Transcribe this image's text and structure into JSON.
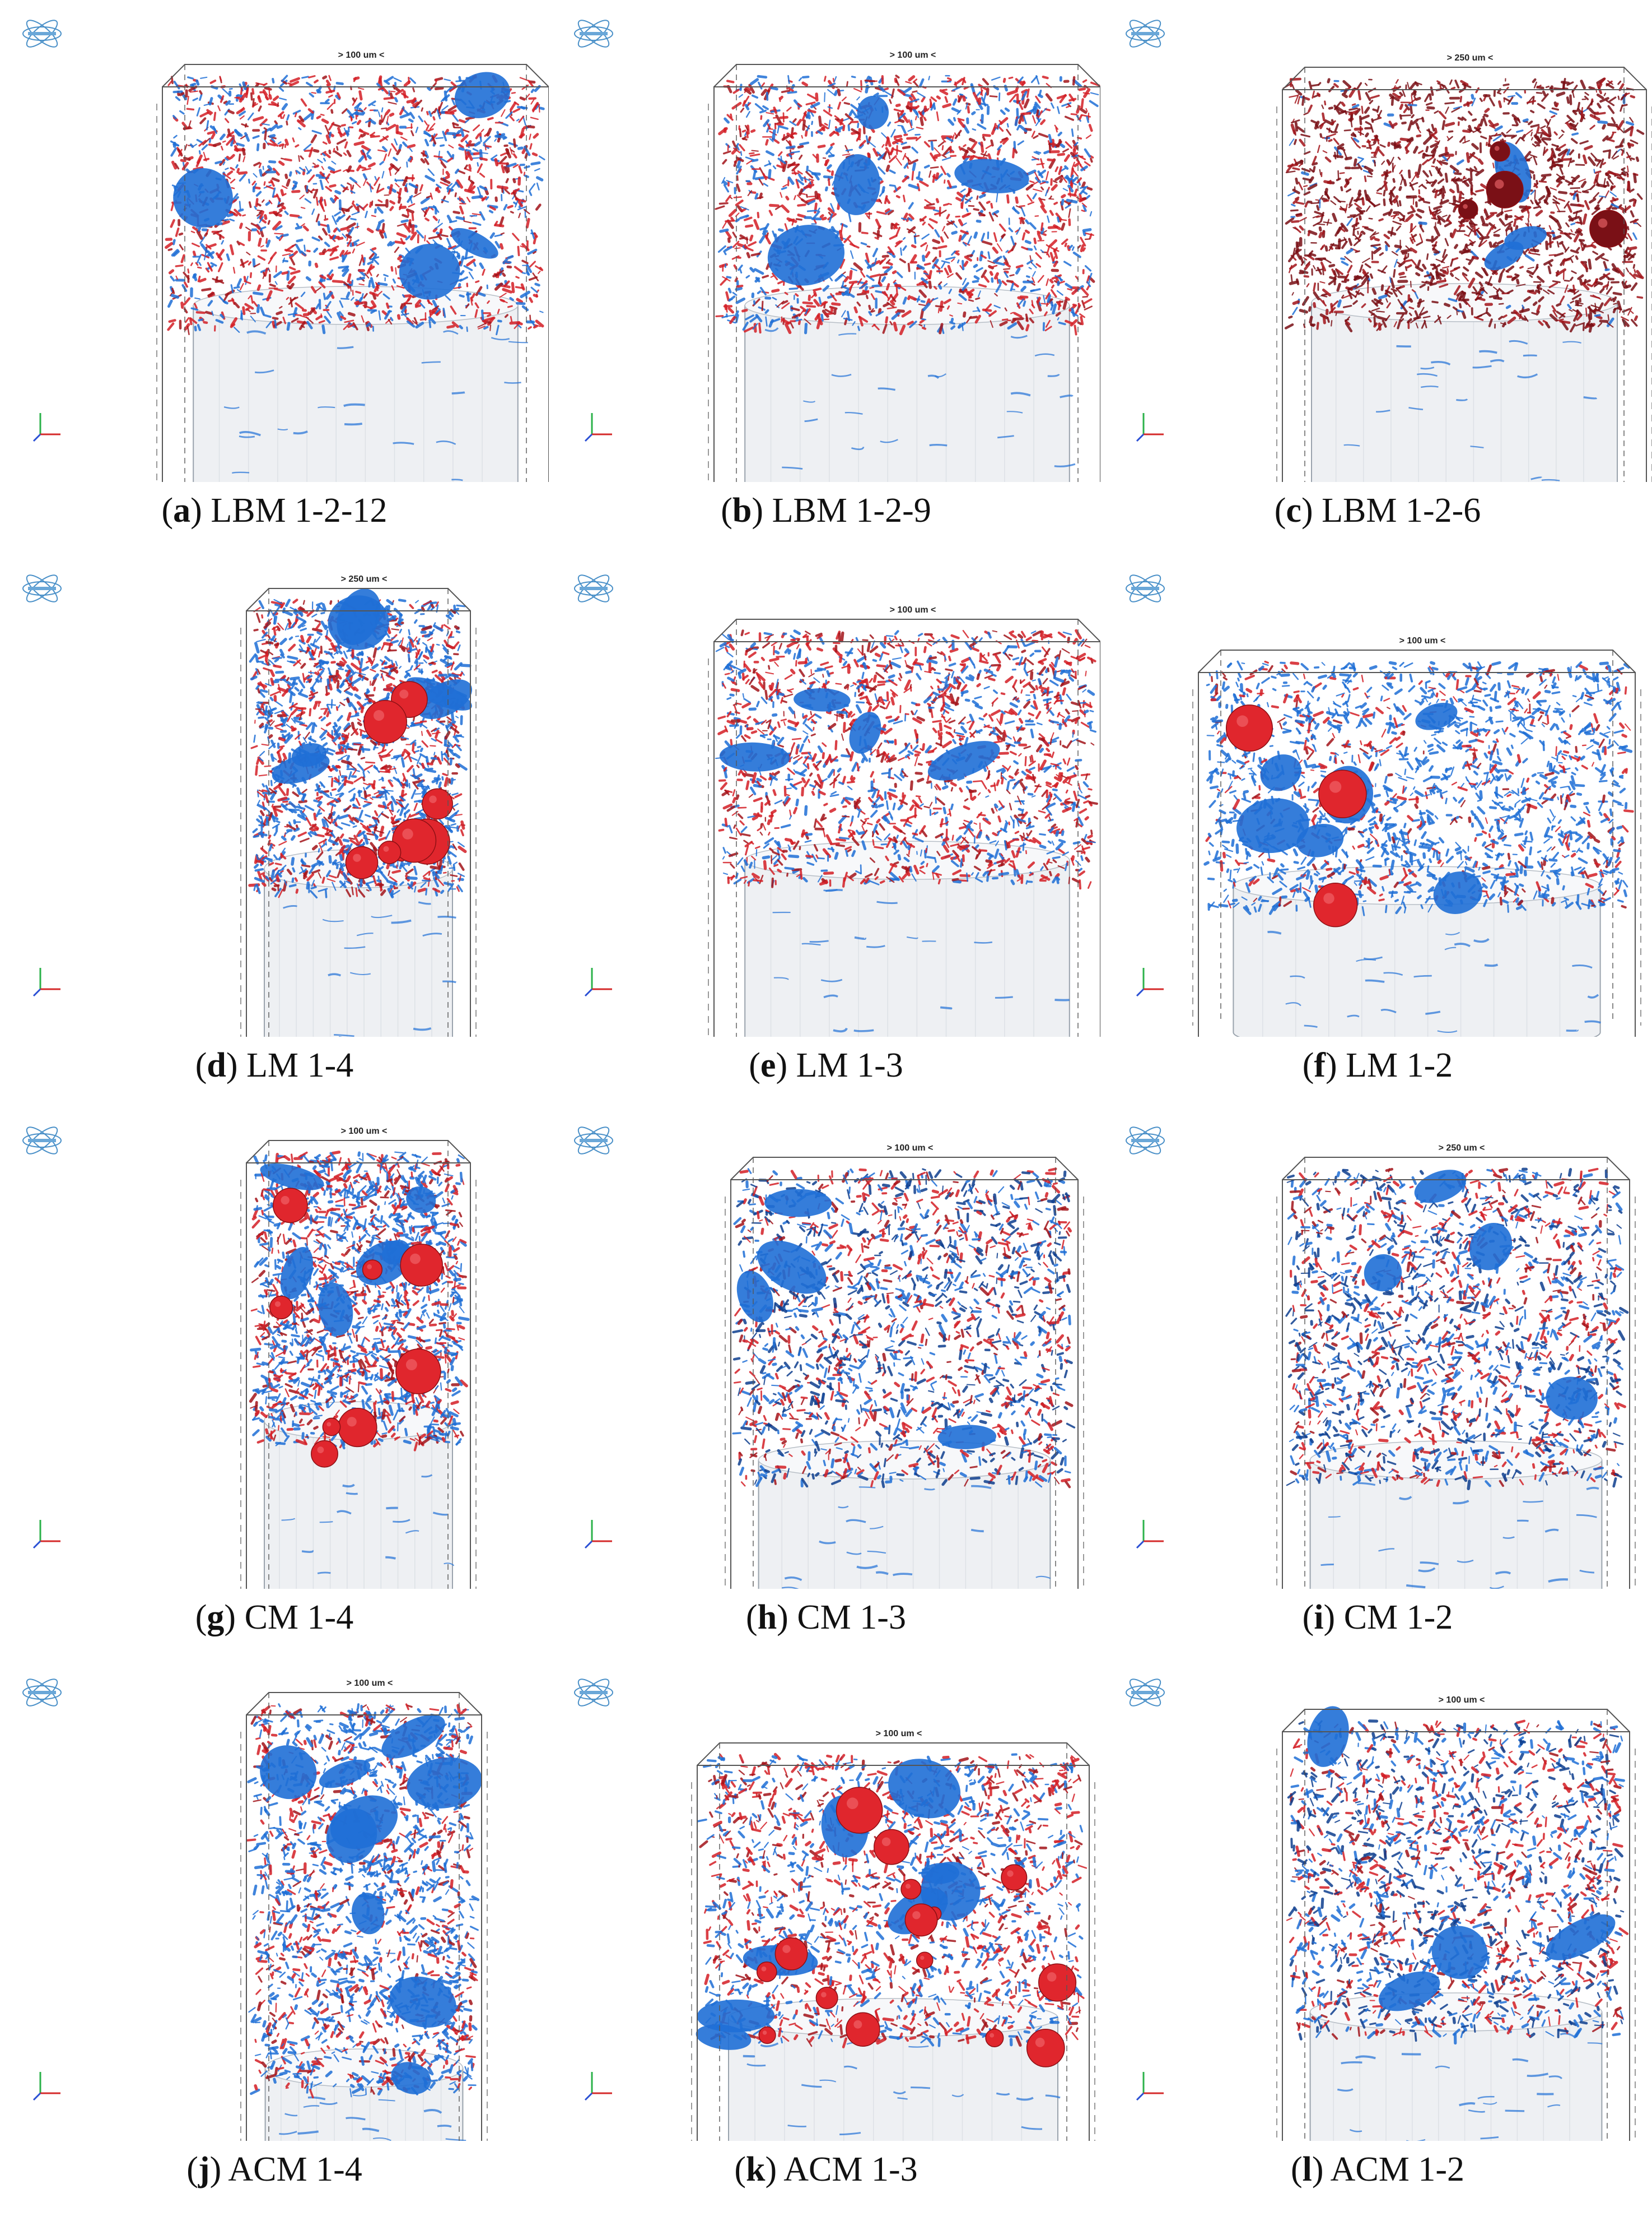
{
  "figure": {
    "panels": [
      {
        "letter": "a",
        "label": "LBM 1-2-12",
        "scale": "> 100 um <",
        "style": "red-dominant"
      },
      {
        "letter": "b",
        "label": "LBM 1-2-9",
        "scale": "> 100 um <",
        "style": "red-dominant"
      },
      {
        "letter": "c",
        "label": "LBM 1-2-6",
        "scale": "> 250 um <",
        "style": "darkred"
      },
      {
        "letter": "d",
        "label": "LM 1-4",
        "scale": "> 250 um <",
        "style": "mixed-tall"
      },
      {
        "letter": "e",
        "label": "LM 1-3",
        "scale": "> 100 um <",
        "style": "red-dominant"
      },
      {
        "letter": "f",
        "label": "LM 1-2",
        "scale": "> 100 um <",
        "style": "blue-sparse"
      },
      {
        "letter": "g",
        "label": "CM 1-4",
        "scale": "> 100 um <",
        "style": "mixed-tall"
      },
      {
        "letter": "h",
        "label": "CM 1-3",
        "scale": "> 100 um <",
        "style": "blue-dense"
      },
      {
        "letter": "i",
        "label": "CM 1-2",
        "scale": "> 250 um <",
        "style": "blue-dense"
      },
      {
        "letter": "j",
        "label": "ACM 1-4",
        "scale": "> 100 um <",
        "style": "blue-blobs"
      },
      {
        "letter": "k",
        "label": "ACM 1-3",
        "scale": "> 100 um <",
        "style": "red-spheres"
      },
      {
        "letter": "l",
        "label": "ACM 1-2",
        "scale": "> 100 um <",
        "style": "blue-dense"
      }
    ]
  },
  "colors": {
    "pore_red": "#d41f26",
    "pore_darkred": "#7a1016",
    "pore_blue": "#1f6fd6",
    "pore_darkblue": "#0f3f8f",
    "cylinder": "#eef0f3",
    "frame": "#555555"
  }
}
